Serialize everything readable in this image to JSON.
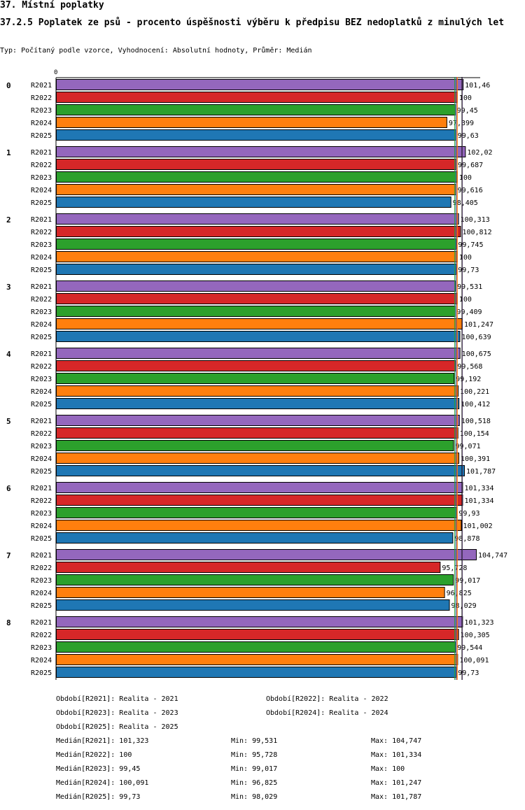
{
  "header": {
    "title": "37. Místní poplatky",
    "subtitle": "37.2.5 Poplatek ze psů - procento úspěšnosti výběru k předpisu BEZ nedoplatků z minulých let",
    "type_line": "Typ: Počítaný podle vzorce, Vyhodnocení: Absolutní hodnoty, Průměr: Medián"
  },
  "colors": {
    "R2021": "#9467bd",
    "R2022": "#d62728",
    "R2023": "#2ca02c",
    "R2024": "#ff7f0e",
    "R2025": "#1f77b4",
    "median_lines": [
      "#9467bd",
      "#d62728",
      "#2ca02c",
      "#ff7f0e",
      "#1f77b4"
    ]
  },
  "chart_data": {
    "type": "bar",
    "orientation": "horizontal",
    "title": "37.2.5 Poplatek ze psů - procento úspěšnosti výběru k předpisu BEZ nedoplatků z minulých let",
    "axis_zero_label": "0",
    "xlim": [
      0,
      104.747
    ],
    "series_names": [
      "R2021",
      "R2022",
      "R2023",
      "R2024",
      "R2025"
    ],
    "groups": [
      {
        "name": "0",
        "values": [
          101.46,
          100,
          99.45,
          97.399,
          99.63
        ],
        "labels": [
          "101,46",
          "100",
          "99,45",
          "97,399",
          "99,63"
        ]
      },
      {
        "name": "1",
        "values": [
          102.02,
          99.687,
          100,
          99.616,
          98.405
        ],
        "labels": [
          "102,02",
          "99,687",
          "100",
          "99,616",
          "98,405"
        ]
      },
      {
        "name": "2",
        "values": [
          100.313,
          100.812,
          99.745,
          100,
          99.73
        ],
        "labels": [
          "100,313",
          "100,812",
          "99,745",
          "100",
          "99,73"
        ]
      },
      {
        "name": "3",
        "values": [
          99.531,
          100,
          99.409,
          101.247,
          100.639
        ],
        "labels": [
          "99,531",
          "100",
          "99,409",
          "101,247",
          "100,639"
        ]
      },
      {
        "name": "4",
        "values": [
          100.675,
          99.568,
          99.192,
          100.221,
          100.412
        ],
        "labels": [
          "100,675",
          "99,568",
          "99,192",
          "100,221",
          "100,412"
        ]
      },
      {
        "name": "5",
        "values": [
          100.518,
          100.154,
          99.071,
          100.391,
          101.787
        ],
        "labels": [
          "100,518",
          "100,154",
          "99,071",
          "100,391",
          "101,787"
        ]
      },
      {
        "name": "6",
        "values": [
          101.334,
          101.334,
          99.93,
          101.002,
          98.878
        ],
        "labels": [
          "101,334",
          "101,334",
          "99,93",
          "101,002",
          "98,878"
        ]
      },
      {
        "name": "7",
        "values": [
          104.747,
          95.728,
          99.017,
          96.825,
          98.029
        ],
        "labels": [
          "104,747",
          "95,728",
          "99,017",
          "96,825",
          "98,029"
        ]
      },
      {
        "name": "8",
        "values": [
          101.323,
          100.305,
          99.544,
          100.091,
          99.73
        ],
        "labels": [
          "101,323",
          "100,305",
          "99,544",
          "100,091",
          "99,73"
        ]
      }
    ],
    "medians": [
      101.323,
      100,
      99.45,
      100.091,
      99.73
    ]
  },
  "legend": {
    "periods": [
      "Období[R2021]: Realita - 2021",
      "Období[R2022]: Realita - 2022",
      "Období[R2023]: Realita - 2023",
      "Období[R2024]: Realita - 2024",
      "Období[R2025]: Realita - 2025"
    ],
    "stats": [
      {
        "median": "Medián[R2021]: 101,323",
        "min": "Min: 99,531",
        "max": "Max: 104,747"
      },
      {
        "median": "Medián[R2022]: 100",
        "min": "Min: 95,728",
        "max": "Max: 101,334"
      },
      {
        "median": "Medián[R2023]: 99,45",
        "min": "Min: 99,017",
        "max": "Max: 100"
      },
      {
        "median": "Medián[R2024]: 100,091",
        "min": "Min: 96,825",
        "max": "Max: 101,247"
      },
      {
        "median": "Medián[R2025]: 99,73",
        "min": "Min: 98,029",
        "max": "Max: 101,787"
      }
    ]
  }
}
